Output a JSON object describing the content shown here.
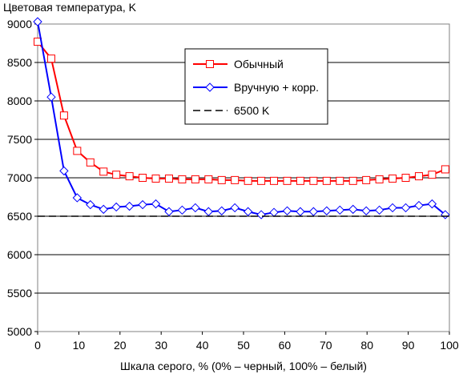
{
  "chart_data": {
    "type": "line",
    "title": "Цветовая температура, K",
    "xlabel": "Шкала серого, % (0% – черный, 100% – белый)",
    "ylabel": "",
    "xlim": [
      0,
      100
    ],
    "ylim": [
      5000,
      9000
    ],
    "x_ticks": [
      0,
      10,
      20,
      30,
      40,
      50,
      60,
      70,
      80,
      90,
      100
    ],
    "y_ticks": [
      5000,
      5500,
      6000,
      6500,
      7000,
      7500,
      8000,
      8500,
      9000
    ],
    "grid": "horizontal",
    "legend_position": "top-right",
    "series": [
      {
        "name": "Обычный",
        "color": "#ff0000",
        "marker": "square",
        "x": [
          0,
          3.3,
          6.4,
          9.6,
          12.8,
          16.0,
          19.1,
          22.3,
          25.5,
          28.7,
          31.9,
          35.1,
          38.3,
          41.5,
          44.7,
          47.9,
          51.1,
          54.3,
          57.4,
          60.6,
          63.8,
          67.0,
          70.2,
          73.4,
          76.6,
          79.8,
          83.0,
          86.2,
          89.4,
          92.6,
          95.8,
          99.0
        ],
        "values": [
          8770,
          8550,
          7810,
          7350,
          7200,
          7080,
          7040,
          7020,
          7000,
          6990,
          6990,
          6980,
          6980,
          6980,
          6970,
          6970,
          6960,
          6960,
          6960,
          6960,
          6960,
          6960,
          6960,
          6960,
          6960,
          6970,
          6980,
          6990,
          7000,
          7020,
          7040,
          7110
        ]
      },
      {
        "name": "Вручную + корр.",
        "color": "#0000ff",
        "marker": "diamond",
        "x": [
          0,
          3.3,
          6.4,
          9.6,
          12.8,
          16.0,
          19.1,
          22.3,
          25.5,
          28.7,
          31.9,
          35.1,
          38.3,
          41.5,
          44.7,
          47.9,
          51.1,
          54.3,
          57.4,
          60.6,
          63.8,
          67.0,
          70.2,
          73.4,
          76.6,
          79.8,
          83.0,
          86.2,
          89.4,
          92.6,
          95.8,
          99.0
        ],
        "values": [
          9030,
          8050,
          7090,
          6740,
          6650,
          6590,
          6620,
          6630,
          6650,
          6660,
          6560,
          6580,
          6610,
          6560,
          6570,
          6610,
          6560,
          6520,
          6550,
          6570,
          6560,
          6560,
          6570,
          6580,
          6590,
          6570,
          6580,
          6610,
          6610,
          6640,
          6660,
          6520
        ]
      },
      {
        "name": "6500 K",
        "color": "#000000",
        "marker": "none",
        "dash": true,
        "x": [
          0,
          100
        ],
        "values": [
          6500,
          6500
        ]
      }
    ]
  }
}
